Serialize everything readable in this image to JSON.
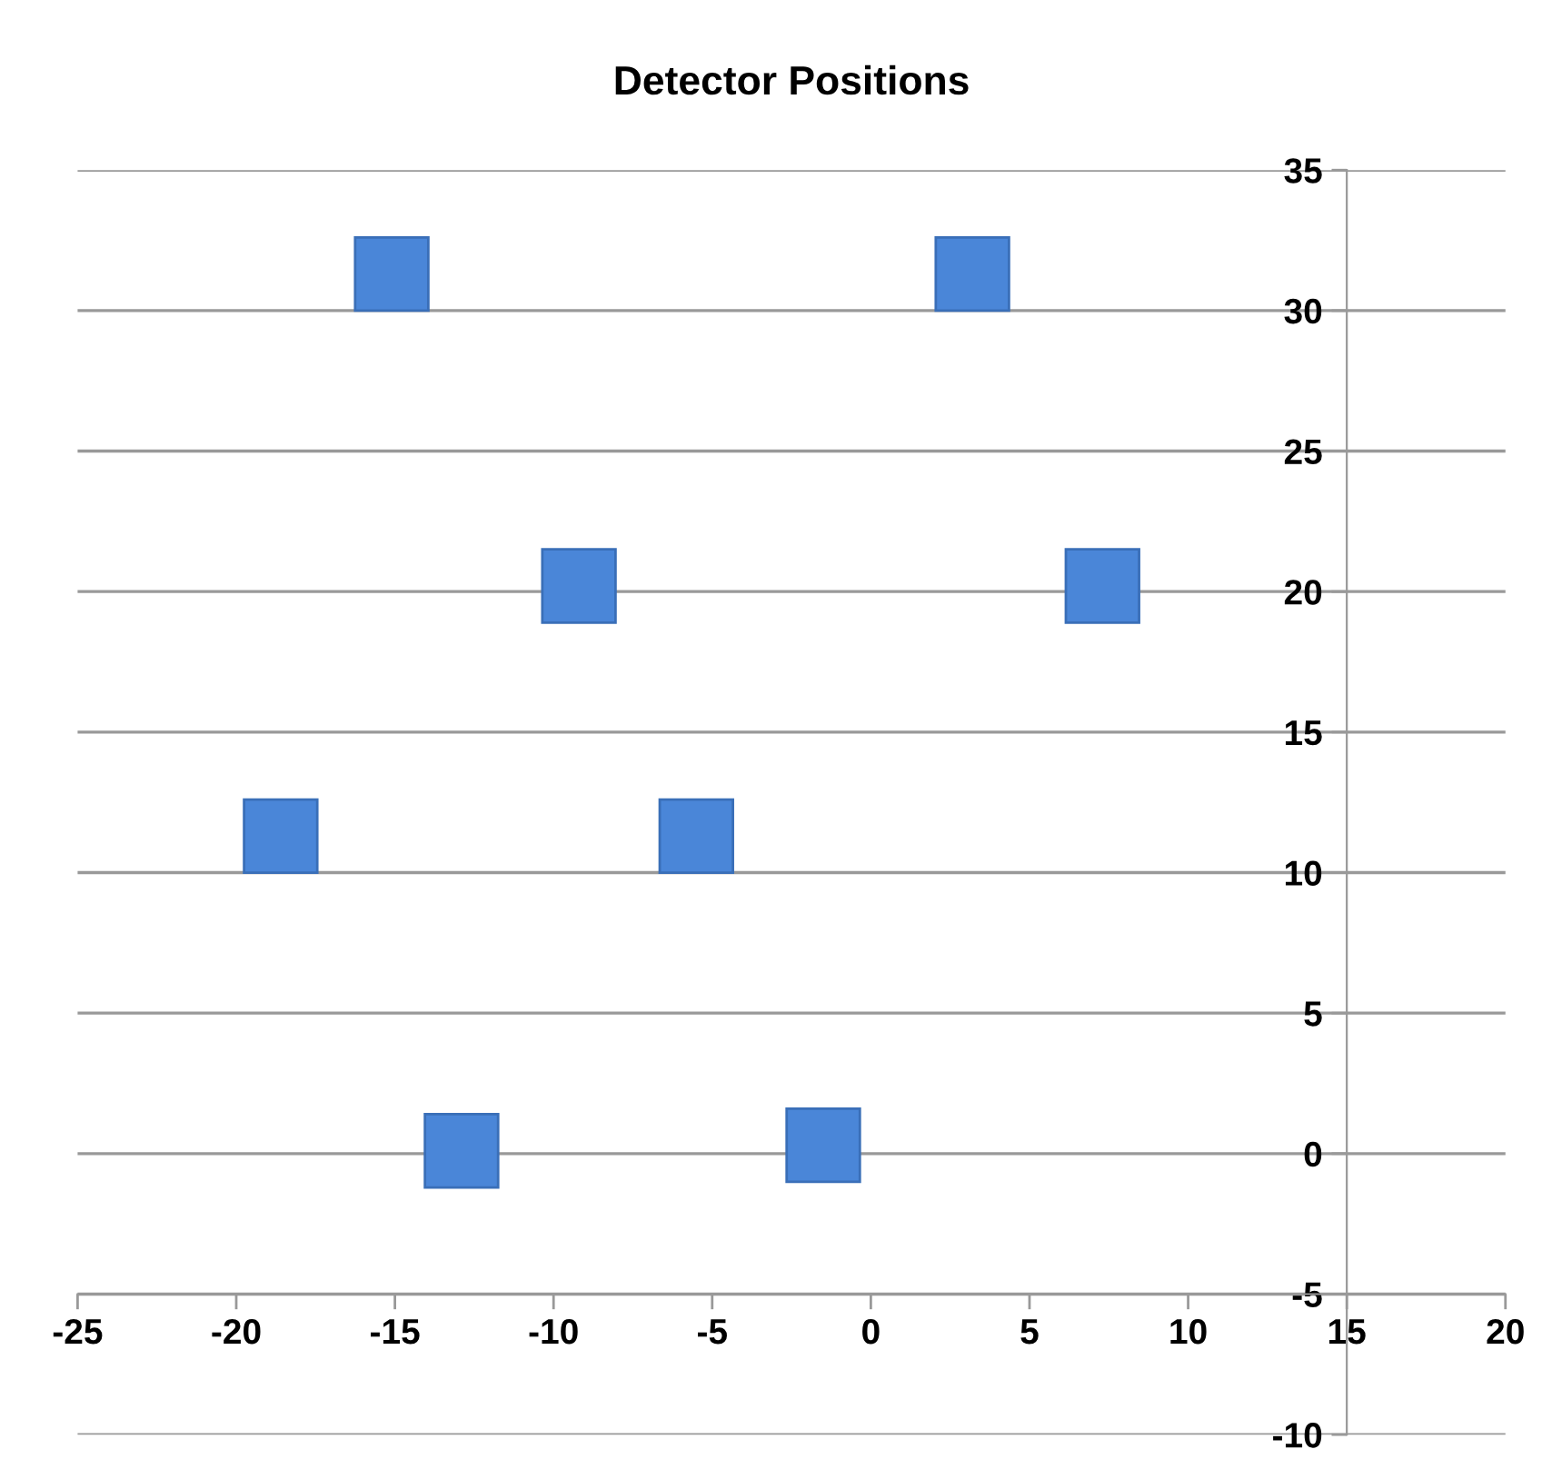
{
  "chart_data": {
    "type": "scatter",
    "title": "Detector Positions",
    "x": [
      -15.1,
      3.2,
      -9.2,
      7.3,
      -18.6,
      -5.5,
      -12.9,
      -1.5
    ],
    "values": [
      31.3,
      31.3,
      20.2,
      20.2,
      11.3,
      11.3,
      0.1,
      0.3
    ],
    "color": "#4a86d8",
    "marker": "square",
    "xlim": [
      -25,
      20
    ],
    "ylim": [
      -10,
      35
    ],
    "xticks": [
      -25,
      -20,
      -15,
      -10,
      -5,
      0,
      5,
      10,
      15,
      20
    ],
    "yticks": [
      -10,
      -5,
      0,
      5,
      10,
      15,
      20,
      25,
      30,
      35
    ],
    "grid": "y"
  }
}
